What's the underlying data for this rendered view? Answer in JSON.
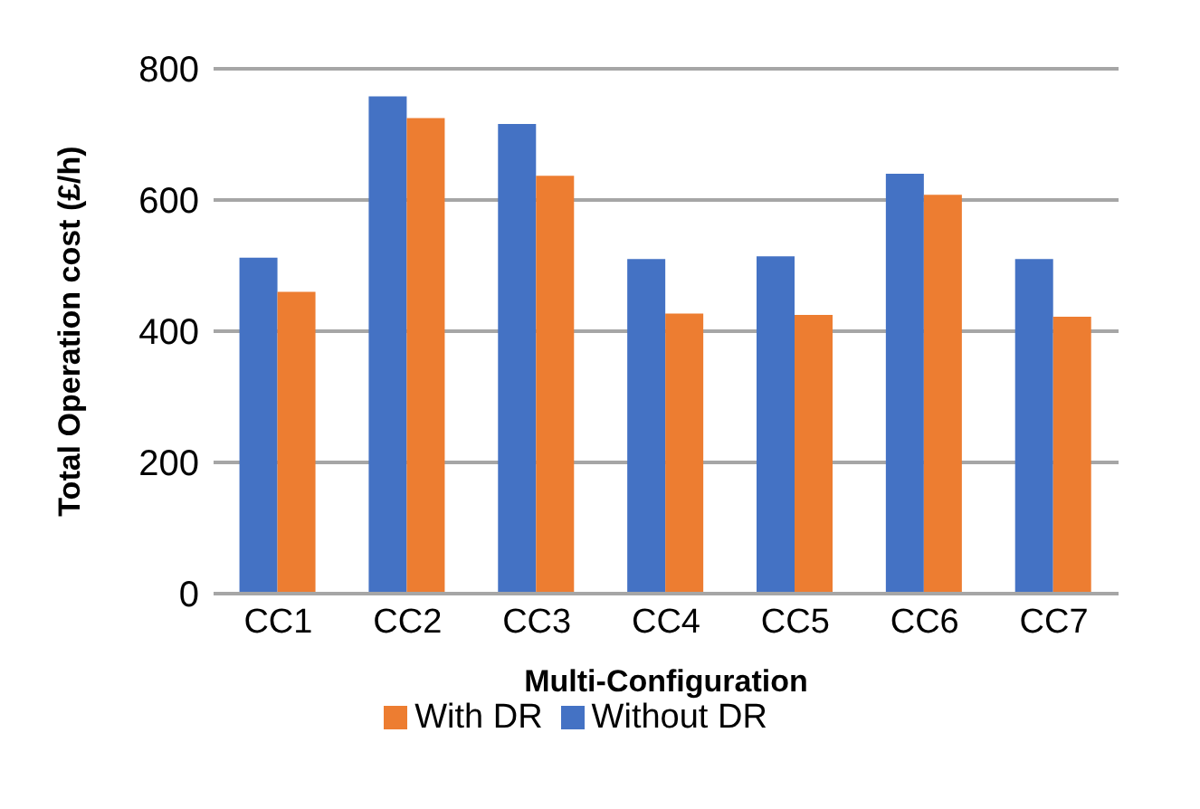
{
  "chart_data": {
    "type": "bar",
    "xlabel": "Multi-Configuration",
    "ylabel": "Total Operation cost (£/h)",
    "categories": [
      "CC1",
      "CC2",
      "CC3",
      "CC4",
      "CC5",
      "CC6",
      "CC7"
    ],
    "series": [
      {
        "name": "Without DR",
        "color": "#4472c4",
        "values": [
          512,
          758,
          716,
          510,
          514,
          640,
          510
        ]
      },
      {
        "name": "With DR",
        "color": "#ed7d31",
        "values": [
          460,
          725,
          637,
          427,
          425,
          608,
          422
        ]
      }
    ],
    "ylim": [
      0,
      800
    ],
    "yticks": [
      0,
      200,
      400,
      600,
      800
    ],
    "grid": "y",
    "legend": "bottom"
  }
}
